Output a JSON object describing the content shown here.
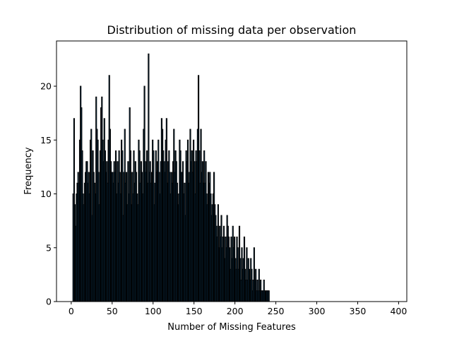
{
  "chart_data": {
    "type": "bar",
    "subtype": "histogram",
    "title": "Distribution of missing data per observation",
    "xlabel": "Number of Missing Features",
    "ylabel": "Frequency",
    "xlim": [
      -18,
      410
    ],
    "ylim": [
      0,
      24.2
    ],
    "xticks": [
      0,
      50,
      100,
      150,
      200,
      250,
      300,
      350,
      400
    ],
    "yticks": [
      0,
      5,
      10,
      15,
      20
    ],
    "grid": false,
    "legend": "none",
    "bar_color": "#1f77b4",
    "edge_color": "#000000",
    "bin_start": 2,
    "bin_width": 1,
    "values": [
      10,
      17,
      9,
      7,
      10,
      11,
      12,
      11,
      15,
      20,
      18,
      14,
      10,
      9,
      11,
      12,
      13,
      13,
      11,
      12,
      10,
      15,
      16,
      8,
      14,
      12,
      11,
      10,
      19,
      16,
      15,
      12,
      9,
      14,
      18,
      19,
      15,
      13,
      17,
      14,
      12,
      13,
      11,
      15,
      21,
      16,
      13,
      12,
      12,
      11,
      13,
      12,
      14,
      10,
      13,
      11,
      14,
      12,
      10,
      15,
      14,
      8,
      12,
      16,
      11,
      12,
      9,
      13,
      10,
      18,
      14,
      9,
      12,
      10,
      14,
      11,
      13,
      12,
      10,
      9,
      15,
      14,
      11,
      13,
      12,
      10,
      16,
      20,
      13,
      12,
      14,
      11,
      23,
      12,
      13,
      11,
      12,
      15,
      14,
      9,
      11,
      14,
      12,
      13,
      15,
      12,
      10,
      13,
      17,
      16,
      14,
      13,
      12,
      15,
      17,
      11,
      13,
      14,
      12,
      10,
      12,
      11,
      13,
      16,
      12,
      14,
      13,
      11,
      9,
      10,
      15,
      14,
      12,
      12,
      13,
      10,
      11,
      8,
      14,
      13,
      15,
      11,
      12,
      16,
      13,
      14,
      12,
      15,
      13,
      10,
      14,
      13,
      16,
      21,
      14,
      11,
      16,
      12,
      13,
      11,
      14,
      11,
      13,
      10,
      9,
      12,
      11,
      12,
      10,
      8,
      9,
      10,
      12,
      9,
      8,
      7,
      6,
      9,
      5,
      7,
      6,
      8,
      5,
      6,
      7,
      4,
      6,
      5,
      8,
      7,
      6,
      5,
      3,
      6,
      4,
      7,
      5,
      6,
      4,
      3,
      6,
      5,
      3,
      7,
      4,
      2,
      5,
      3,
      4,
      6,
      3,
      2,
      5,
      2,
      4,
      3,
      2,
      4,
      3,
      1,
      2,
      5,
      2,
      3,
      1,
      2,
      1,
      3,
      1,
      2,
      1,
      1,
      1,
      2,
      1,
      1,
      1,
      1,
      1,
      1
    ]
  }
}
